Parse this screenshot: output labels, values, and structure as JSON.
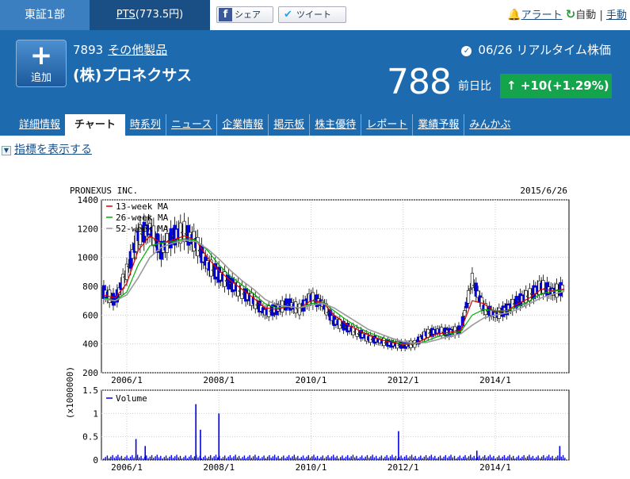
{
  "topbar": {
    "market": "東証1部",
    "pts_label": "PTS",
    "pts_value": "(773.5円)",
    "share_fb": "シェア",
    "share_tw": "ツイート",
    "alert": "アラート",
    "auto": "自動",
    "sep": "|",
    "manual": "手動"
  },
  "header": {
    "add_plus": "+",
    "add_label": "追加",
    "code": "7893",
    "sector": "その他製品",
    "company": "(株)プロネクサス",
    "date": "06/26",
    "realtime": "リアルタイム株価",
    "price": "788",
    "prev_label": "前日比",
    "change": "+10(+1.29%)",
    "change_arrow": "↑"
  },
  "tabs": [
    "詳細情報",
    "チャート",
    "時系列",
    "ニュース",
    "企業情報",
    "掲示板",
    "株主優待",
    "レポート",
    "業績予報",
    "みんかぶ"
  ],
  "indicator": {
    "toggle": "▼",
    "label": "指標を表示する"
  },
  "colors": {
    "header_bg": "#1d6aaf",
    "pts_bg": "#1a4f86",
    "change_bg": "#14a54c",
    "candle_up": "#0000e6",
    "ma13": "#e00000",
    "ma26": "#00b000",
    "ma52": "#9a9a9a"
  },
  "chart_data": {
    "type": "line",
    "title": "PRONEXUS INC.",
    "date": "2015/6/26",
    "price_panel": {
      "ylim": [
        200,
        1400
      ],
      "yticks": [
        200,
        400,
        600,
        800,
        1000,
        1200,
        1400
      ],
      "xticks": [
        "2006/1",
        "2008/1",
        "2010/1",
        "2012/1",
        "2014/1"
      ],
      "x": [
        2005.5,
        2005.75,
        2006.0,
        2006.25,
        2006.5,
        2006.75,
        2007.0,
        2007.25,
        2007.5,
        2007.75,
        2008.0,
        2008.25,
        2008.5,
        2008.75,
        2009.0,
        2009.25,
        2009.5,
        2009.75,
        2010.0,
        2010.25,
        2010.5,
        2010.75,
        2011.0,
        2011.25,
        2011.5,
        2011.75,
        2012.0,
        2012.25,
        2012.5,
        2012.75,
        2013.0,
        2013.25,
        2013.5,
        2013.75,
        2014.0,
        2014.25,
        2014.5,
        2014.75,
        2015.0,
        2015.25,
        2015.5
      ],
      "price": [
        760,
        700,
        900,
        1150,
        1200,
        1050,
        1150,
        1180,
        1100,
        950,
        880,
        820,
        760,
        700,
        620,
        640,
        680,
        640,
        720,
        680,
        560,
        520,
        480,
        440,
        420,
        400,
        390,
        400,
        470,
        490,
        480,
        500,
        840,
        650,
        600,
        640,
        700,
        740,
        800,
        760,
        790
      ],
      "series": [
        {
          "name": "13-week MA",
          "values": [
            740,
            720,
            820,
            1050,
            1150,
            1100,
            1120,
            1150,
            1120,
            1000,
            910,
            840,
            780,
            720,
            650,
            640,
            660,
            650,
            700,
            690,
            600,
            540,
            500,
            460,
            430,
            410,
            395,
            400,
            440,
            470,
            480,
            495,
            700,
            680,
            620,
            630,
            680,
            720,
            780,
            770,
            780
          ]
        },
        {
          "name": "26-week MA",
          "values": [
            720,
            700,
            760,
            950,
            1080,
            1100,
            1110,
            1130,
            1120,
            1050,
            950,
            870,
            810,
            750,
            680,
            650,
            660,
            650,
            680,
            690,
            630,
            570,
            520,
            480,
            450,
            420,
            400,
            400,
            420,
            450,
            470,
            485,
            600,
            640,
            630,
            630,
            660,
            700,
            750,
            765,
            775
          ]
        },
        {
          "name": "52-week MA",
          "values": [
            710,
            700,
            740,
            860,
            1000,
            1070,
            1100,
            1120,
            1110,
            1060,
            990,
            910,
            840,
            780,
            710,
            670,
            660,
            650,
            670,
            680,
            650,
            600,
            550,
            500,
            470,
            440,
            415,
            405,
            410,
            430,
            455,
            470,
            530,
            580,
            600,
            615,
            640,
            680,
            720,
            745,
            765
          ]
        }
      ]
    },
    "volume_panel": {
      "ylabel": "(x1000000)",
      "ylim": [
        0,
        1.5
      ],
      "yticks": [
        "0",
        "0.5",
        "1",
        "1.5"
      ],
      "xticks": [
        "2006/1",
        "2008/1",
        "2010/1",
        "2012/1",
        "2014/1"
      ],
      "legend": "Volume",
      "x": [
        2006.2,
        2006.4,
        2007.5,
        2007.6,
        2008.0,
        2011.9,
        2013.6,
        2015.4
      ],
      "values": [
        0.45,
        0.3,
        1.2,
        0.65,
        1.0,
        0.62,
        0.2,
        0.3
      ],
      "baseline": 0.08
    }
  }
}
